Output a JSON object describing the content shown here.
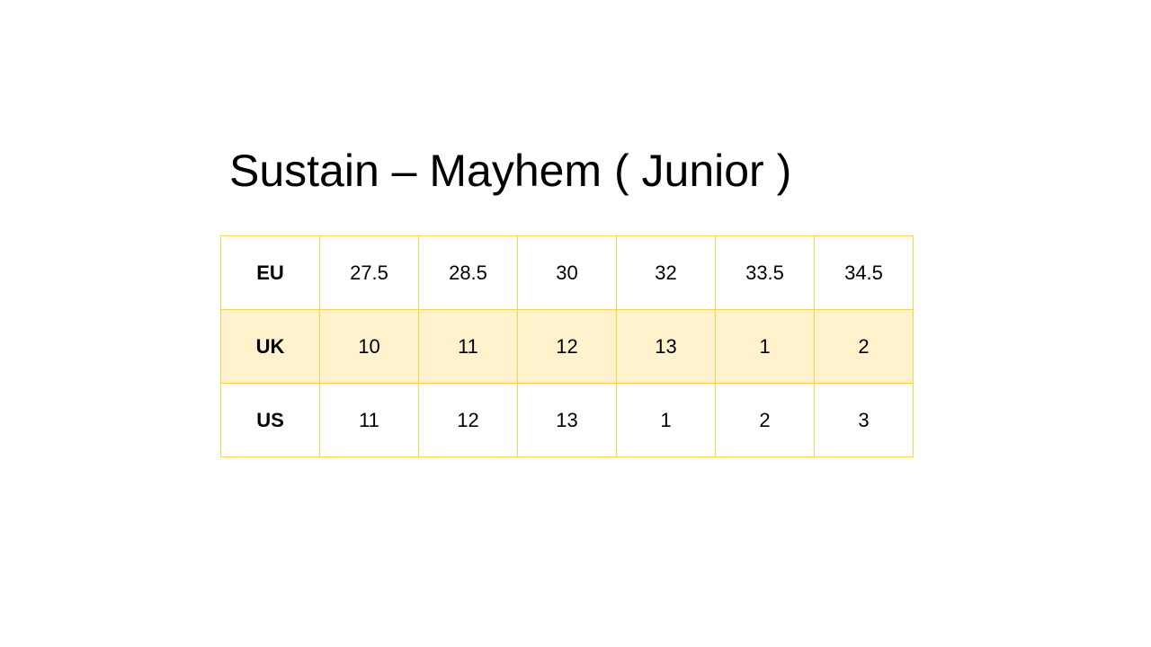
{
  "title": "Sustain – Mayhem ( Junior )",
  "colors": {
    "border": "#FFD24D",
    "shaded_row": "#FFF2CC"
  },
  "table": {
    "rows": [
      {
        "label": "EU",
        "values": [
          "27.5",
          "28.5",
          "30",
          "32",
          "33.5",
          "34.5"
        ]
      },
      {
        "label": "UK",
        "values": [
          "10",
          "11",
          "12",
          "13",
          "1",
          "2"
        ]
      },
      {
        "label": "US",
        "values": [
          "11",
          "12",
          "13",
          "1",
          "2",
          "3"
        ]
      }
    ]
  }
}
